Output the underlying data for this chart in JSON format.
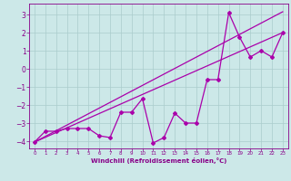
{
  "title": "",
  "xlabel": "Windchill (Refroidissement éolien,°C)",
  "ylabel": "",
  "bg_color": "#cce8e8",
  "line_color": "#aa00aa",
  "grid_color": "#aacccc",
  "xlim": [
    -0.5,
    23.5
  ],
  "ylim": [
    -4.4,
    3.6
  ],
  "xticks": [
    0,
    1,
    2,
    3,
    4,
    5,
    6,
    7,
    8,
    9,
    10,
    11,
    12,
    13,
    14,
    15,
    16,
    17,
    18,
    19,
    20,
    21,
    22,
    23
  ],
  "yticks": [
    -4,
    -3,
    -2,
    -1,
    0,
    1,
    2,
    3
  ],
  "straight_line": [
    [
      0,
      -4.05
    ],
    [
      23,
      2.0
    ]
  ],
  "straight_line2": [
    [
      0,
      -4.05
    ],
    [
      23,
      3.15
    ]
  ],
  "data_x": [
    0,
    1,
    2,
    3,
    4,
    5,
    6,
    7,
    8,
    9,
    10,
    11,
    12,
    13,
    14,
    15,
    16,
    17,
    18,
    19,
    20,
    21,
    22,
    23
  ],
  "data_y": [
    -4.05,
    -3.45,
    -3.45,
    -3.3,
    -3.3,
    -3.3,
    -3.7,
    -3.8,
    -2.4,
    -2.4,
    -1.65,
    -4.1,
    -3.8,
    -2.45,
    -3.0,
    -3.0,
    -0.6,
    -0.6,
    3.1,
    1.75,
    0.65,
    1.0,
    0.65,
    2.0
  ]
}
